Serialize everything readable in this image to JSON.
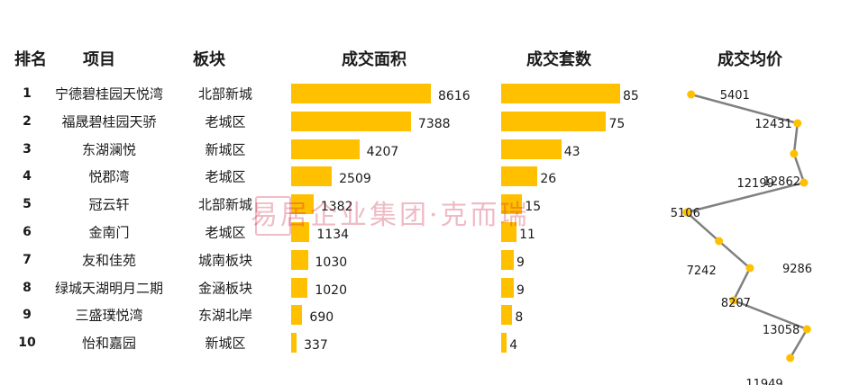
{
  "headers": {
    "rank": "排名",
    "project": "项目",
    "district": "板块",
    "area": "成交面积",
    "units": "成交套数",
    "price": "成交均价"
  },
  "watermark": "易居企业集团·克而瑞",
  "colors": {
    "bar": "#FFC000",
    "line": "#808080",
    "marker": "#FFC000"
  },
  "rows": [
    {
      "rank": "1",
      "project": "宁德碧桂园天悦湾",
      "district": "北部新城",
      "area": "8616",
      "units": "85",
      "price": "5401"
    },
    {
      "rank": "2",
      "project": "福晟碧桂园天骄",
      "district": "老城区",
      "area": "7388",
      "units": "75",
      "price": "12431"
    },
    {
      "rank": "3",
      "project": "东湖澜悦",
      "district": "新城区",
      "area": "4207",
      "units": "43",
      "price": "12199"
    },
    {
      "rank": "4",
      "project": "悦郡湾",
      "district": "老城区",
      "area": "2509",
      "units": "26",
      "price": "12862"
    },
    {
      "rank": "5",
      "project": "冠云轩",
      "district": "北部新城",
      "area": "1382",
      "units": "15",
      "price": "5106"
    },
    {
      "rank": "6",
      "project": "金南门",
      "district": "老城区",
      "area": "1134",
      "units": "11",
      "price": "7242"
    },
    {
      "rank": "7",
      "project": "友和佳苑",
      "district": "城南板块",
      "area": "1030",
      "units": "9",
      "price": "9286"
    },
    {
      "rank": "8",
      "project": "绿城天湖明月二期",
      "district": "金涵板块",
      "area": "1020",
      "units": "9",
      "price": "8207"
    },
    {
      "rank": "9",
      "project": "三盛璞悦湾",
      "district": "东湖北岸",
      "area": "690",
      "units": "8",
      "price": "13058"
    },
    {
      "rank": "10",
      "project": "怡和嘉园",
      "district": "新城区",
      "area": "337",
      "units": "4",
      "price": "11949"
    }
  ],
  "chart_data": [
    {
      "type": "bar",
      "orientation": "horizontal",
      "title": "成交面积",
      "categories": [
        "宁德碧桂园天悦湾",
        "福晟碧桂园天骄",
        "东湖澜悦",
        "悦郡湾",
        "冠云轩",
        "金南门",
        "友和佳苑",
        "绿城天湖明月二期",
        "三盛璞悦湾",
        "怡和嘉园"
      ],
      "values": [
        8616,
        7388,
        4207,
        2509,
        1382,
        1134,
        1030,
        1020,
        690,
        337
      ]
    },
    {
      "type": "bar",
      "orientation": "horizontal",
      "title": "成交套数",
      "categories": [
        "宁德碧桂园天悦湾",
        "福晟碧桂园天骄",
        "东湖澜悦",
        "悦郡湾",
        "冠云轩",
        "金南门",
        "友和佳苑",
        "绿城天湖明月二期",
        "三盛璞悦湾",
        "怡和嘉园"
      ],
      "values": [
        85,
        75,
        43,
        26,
        15,
        11,
        9,
        9,
        8,
        4
      ]
    },
    {
      "type": "line",
      "orientation": "vertical",
      "title": "成交均价",
      "categories": [
        "宁德碧桂园天悦湾",
        "福晟碧桂园天骄",
        "东湖澜悦",
        "悦郡湾",
        "冠云轩",
        "金南门",
        "友和佳苑",
        "绿城天湖明月二期",
        "三盛璞悦湾",
        "怡和嘉园"
      ],
      "values": [
        5401,
        12431,
        12199,
        12862,
        5106,
        7242,
        9286,
        8207,
        13058,
        11949
      ]
    }
  ]
}
